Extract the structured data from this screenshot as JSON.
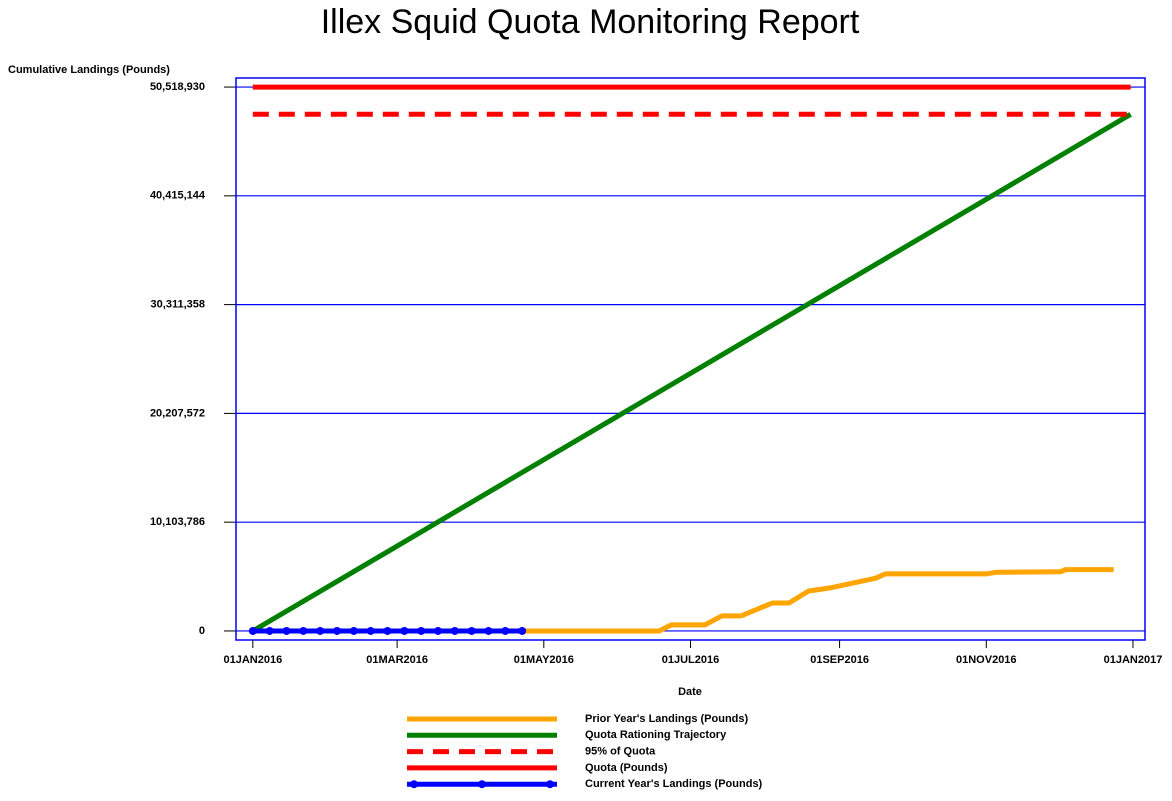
{
  "chart_data": {
    "type": "line",
    "title": "Illex Squid Quota Monitoring Report",
    "y_label": "Cumulative Landings (Pounds)",
    "x_label": "Date",
    "xlim": [
      "2015-12-25",
      "2017-01-06"
    ],
    "xticks": [
      {
        "value": "2016-01-01",
        "label": "01JAN2016"
      },
      {
        "value": "2016-03-01",
        "label": "01MAR2016"
      },
      {
        "value": "2016-05-01",
        "label": "01MAY2016"
      },
      {
        "value": "2016-07-01",
        "label": "01JUL2016"
      },
      {
        "value": "2016-09-01",
        "label": "01SEP2016"
      },
      {
        "value": "2016-11-01",
        "label": "01NOV2016"
      },
      {
        "value": "2017-01-01",
        "label": "01JAN2017"
      }
    ],
    "ylim": [
      -840000,
      51360000
    ],
    "yticks": [
      0,
      {
        "value": 10103786,
        "label": "10,103,786"
      },
      {
        "value": 20207572,
        "label": "20,207,572"
      },
      {
        "value": 30311358,
        "label": "30,311,358"
      },
      {
        "value": 40415144,
        "label": "40,415,144"
      },
      {
        "value": 50518930,
        "label": "50,518,930"
      }
    ],
    "grid": true,
    "legend": "bottom",
    "series": [
      {
        "name": "Prior Year's Landings (Pounds)",
        "color": "#ffa500",
        "style": "solid",
        "x": [
          "2016-01-01",
          "2016-06-18",
          "2016-06-23",
          "2016-07-07",
          "2016-07-14",
          "2016-07-22",
          "2016-08-04",
          "2016-08-11",
          "2016-08-19",
          "2016-08-28",
          "2016-09-16",
          "2016-09-20",
          "2016-11-01",
          "2016-11-05",
          "2016-12-02",
          "2016-12-04",
          "2016-12-24"
        ],
        "values": [
          0,
          0,
          560000,
          560000,
          1400000,
          1400000,
          2600000,
          2600000,
          3700000,
          4000000,
          4900000,
          5300000,
          5300000,
          5450000,
          5500000,
          5700000,
          5700000
        ]
      },
      {
        "name": "Quota Rationing Trajectory",
        "color": "#008000",
        "style": "solid",
        "x": [
          "2016-01-01",
          "2016-12-31"
        ],
        "values": [
          0,
          47992984
        ]
      },
      {
        "name": "95% of Quota",
        "color": "#ff0000",
        "style": "dashed",
        "x": [
          "2016-01-01",
          "2016-12-31"
        ],
        "values": [
          47992984,
          47992984
        ]
      },
      {
        "name": "Quota (Pounds)",
        "color": "#ff0000",
        "style": "solid",
        "x": [
          "2016-01-01",
          "2016-12-31"
        ],
        "values": [
          50518930,
          50518930
        ]
      },
      {
        "name": "Current Year's Landings (Pounds)",
        "color": "#0000ff",
        "style": "solid",
        "markers": true,
        "x": [
          "2016-01-01",
          "2016-01-08",
          "2016-01-15",
          "2016-01-22",
          "2016-01-29",
          "2016-02-05",
          "2016-02-12",
          "2016-02-19",
          "2016-02-26",
          "2016-03-04",
          "2016-03-11",
          "2016-03-18",
          "2016-03-25",
          "2016-04-01",
          "2016-04-08",
          "2016-04-15",
          "2016-04-22"
        ],
        "values": [
          0,
          0,
          0,
          0,
          0,
          0,
          0,
          0,
          0,
          0,
          0,
          0,
          0,
          0,
          0,
          0,
          0
        ]
      }
    ]
  }
}
